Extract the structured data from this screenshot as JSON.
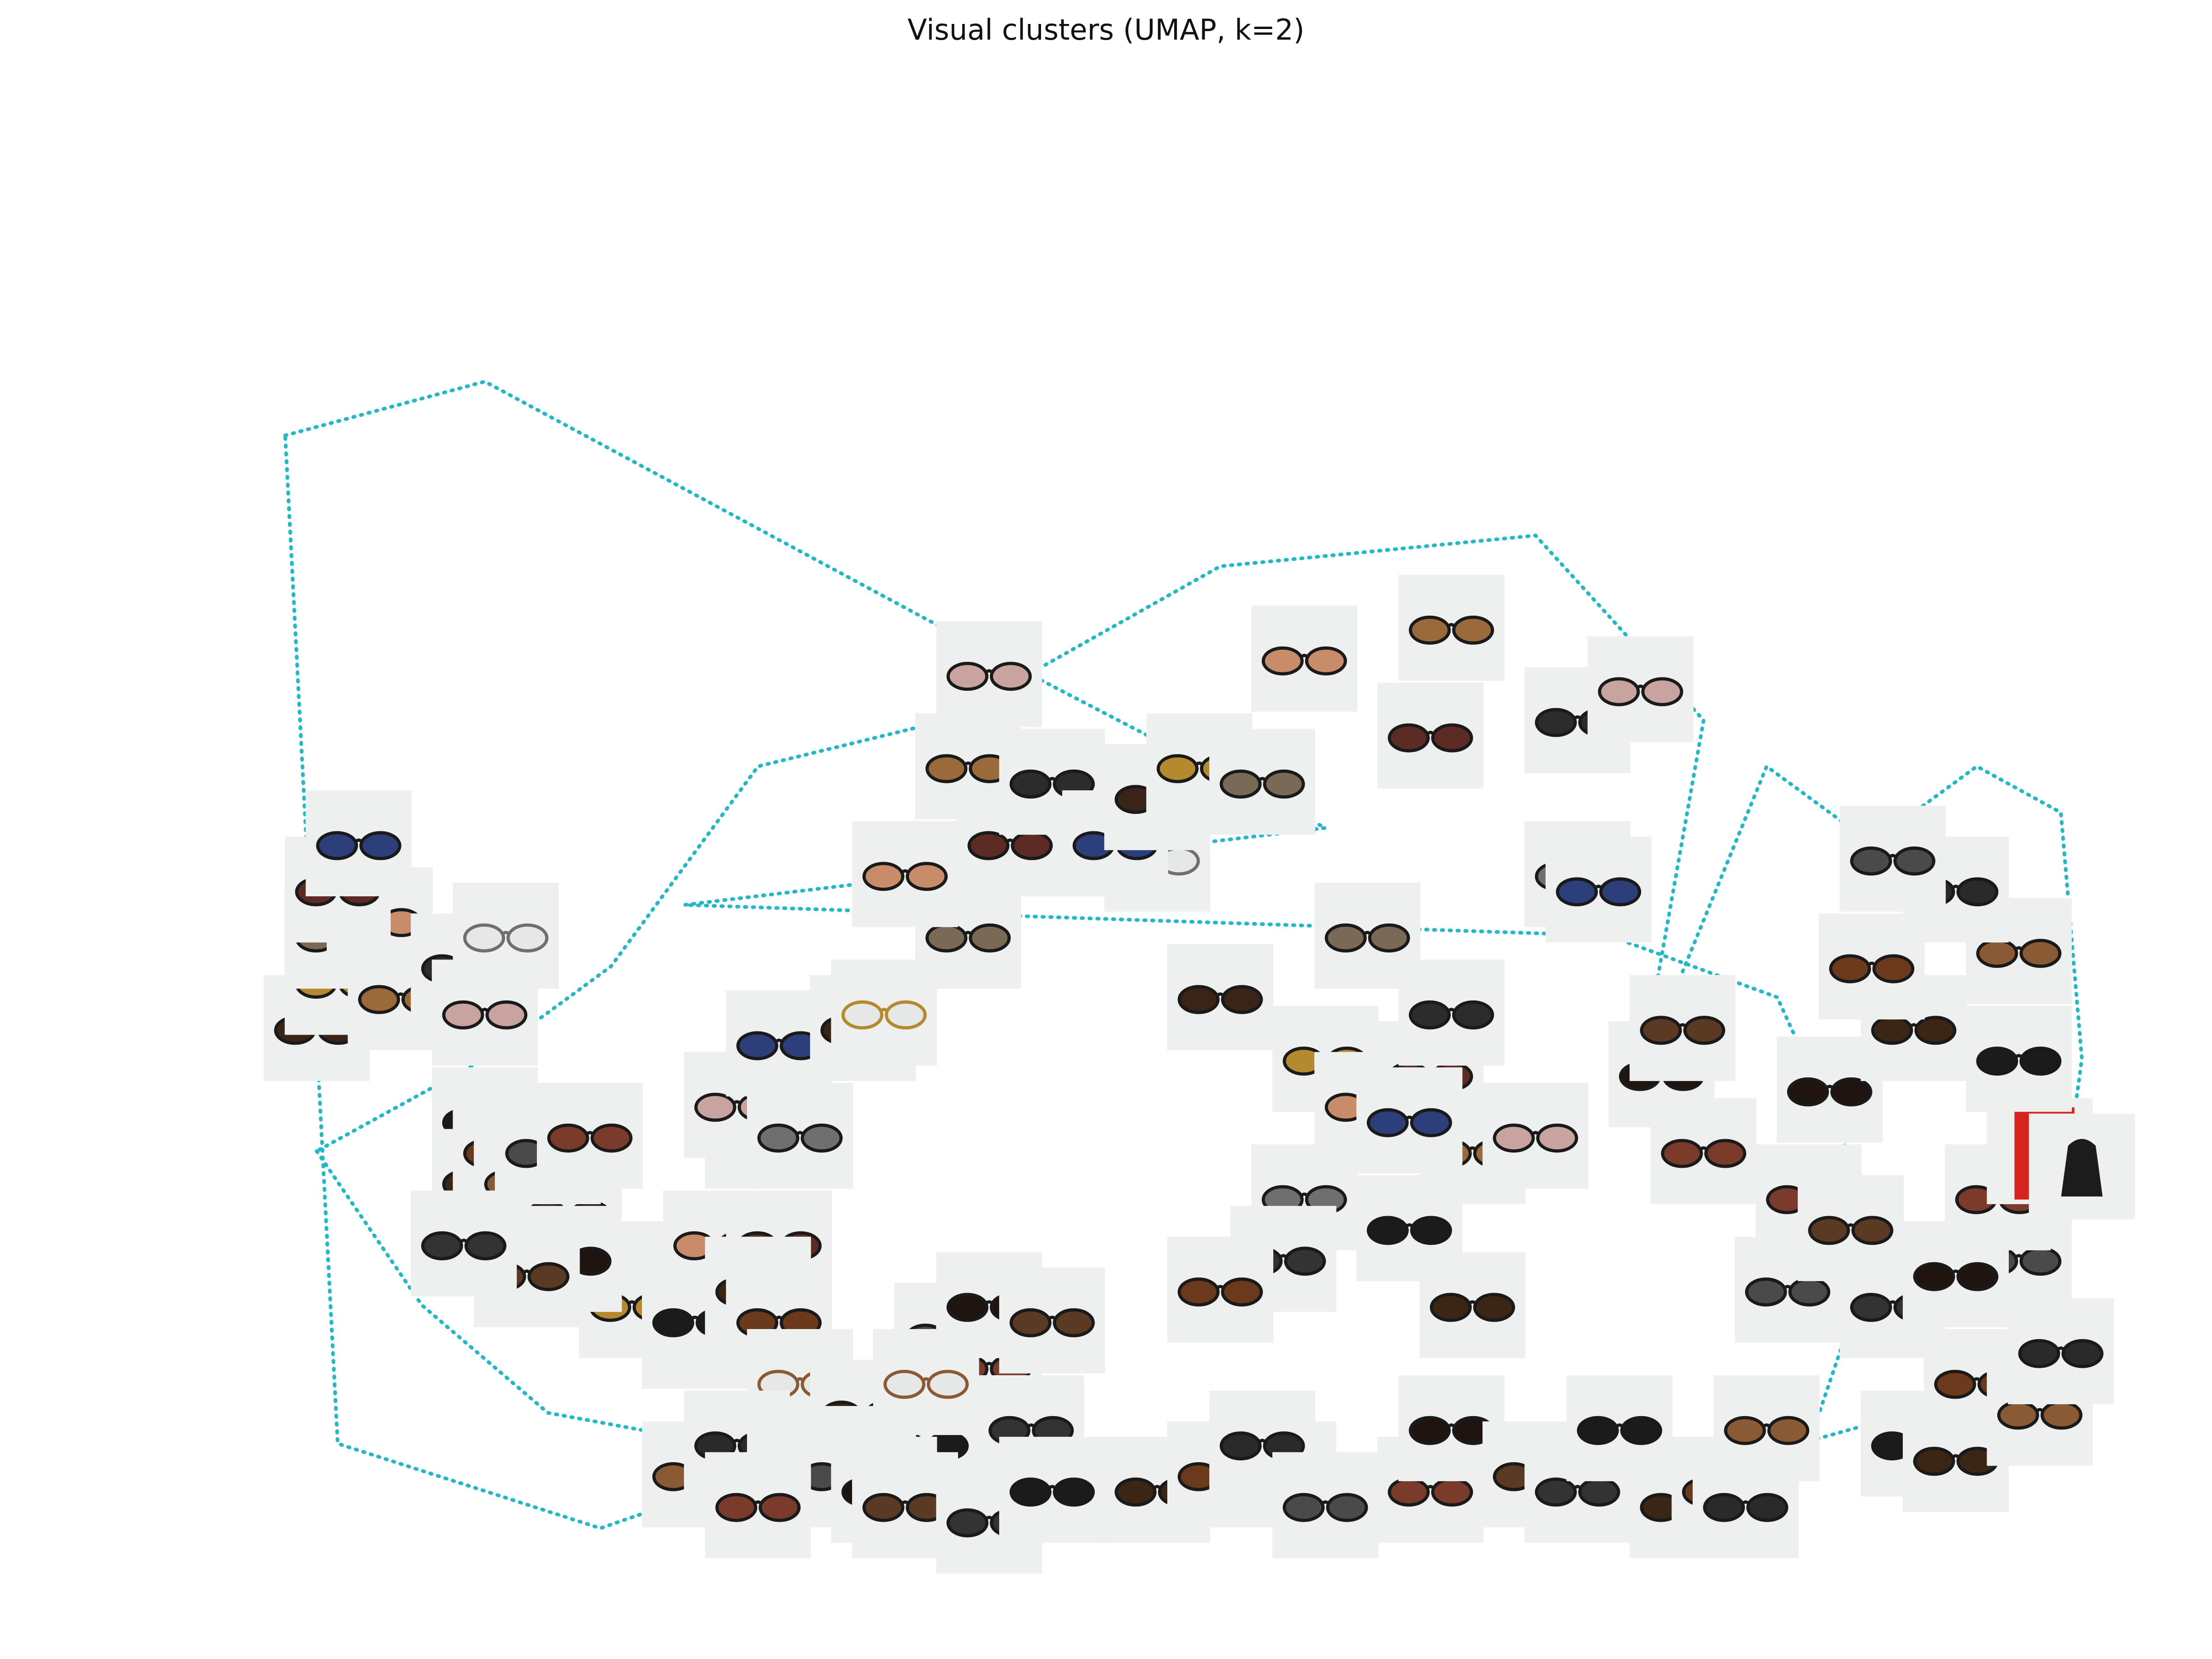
{
  "chart_data": {
    "type": "scatter",
    "title": "Visual clusters (UMAP, k=2)",
    "xlabel": "",
    "ylabel": "",
    "axes_visible": false,
    "grid": false,
    "point_style": "product-thumbnail",
    "hull_color": "#22b8c8",
    "hull_style": "dotted",
    "tile_background": "#eef0ef",
    "clusters": [
      {
        "id": 0,
        "hull": [
          [
            0.105,
            0.765
          ],
          [
            0.2,
            0.8
          ],
          [
            0.445,
            0.62
          ],
          [
            0.6,
            0.51
          ],
          [
            0.295,
            0.46
          ],
          [
            0.735,
            0.44
          ],
          [
            0.815,
            0.4
          ],
          [
            0.865,
            0.25
          ],
          [
            0.815,
            0.05
          ],
          [
            0.735,
            0.11
          ],
          [
            0.565,
            0.08
          ],
          [
            0.35,
            0.1
          ],
          [
            0.255,
            0.055
          ],
          [
            0.13,
            0.11
          ]
        ],
        "points": [
          {
            "x": 0.29,
            "y": 0.22,
            "item": "sunglasses"
          },
          {
            "x": 0.27,
            "y": 0.2,
            "item": "sunglasses"
          },
          {
            "x": 0.3,
            "y": 0.18,
            "item": "sunglasses"
          },
          {
            "x": 0.31,
            "y": 0.24,
            "item": "sunglasses"
          },
          {
            "x": 0.34,
            "y": 0.24,
            "item": "sunglasses"
          },
          {
            "x": 0.33,
            "y": 0.19,
            "item": "sunglasses"
          },
          {
            "x": 0.33,
            "y": 0.31,
            "item": "sunglasses"
          },
          {
            "x": 0.32,
            "y": 0.33,
            "item": "sunglasses"
          },
          {
            "x": 0.35,
            "y": 0.31,
            "item": "sunglasses"
          },
          {
            "x": 0.34,
            "y": 0.37,
            "item": "sunglasses"
          },
          {
            "x": 0.38,
            "y": 0.38,
            "item": "sunglasses"
          },
          {
            "x": 0.39,
            "y": 0.39,
            "item": "eyeglasses"
          },
          {
            "x": 0.43,
            "y": 0.44,
            "item": "sunglasses"
          },
          {
            "x": 0.4,
            "y": 0.48,
            "item": "sunglasses"
          },
          {
            "x": 0.45,
            "y": 0.5,
            "item": "sunglasses"
          },
          {
            "x": 0.43,
            "y": 0.55,
            "item": "sunglasses"
          },
          {
            "x": 0.47,
            "y": 0.54,
            "item": "sunglasses"
          },
          {
            "x": 0.44,
            "y": 0.61,
            "item": "sunglasses"
          },
          {
            "x": 0.52,
            "y": 0.49,
            "item": "eyeglasses"
          },
          {
            "x": 0.5,
            "y": 0.5,
            "item": "sunglasses"
          },
          {
            "x": 0.52,
            "y": 0.53,
            "item": "sunglasses"
          },
          {
            "x": 0.54,
            "y": 0.55,
            "item": "sunglasses"
          },
          {
            "x": 0.57,
            "y": 0.54,
            "item": "sunglasses"
          },
          {
            "x": 0.59,
            "y": 0.62,
            "item": "sunglasses"
          },
          {
            "x": 0.65,
            "y": 0.57,
            "item": "sunglasses"
          },
          {
            "x": 0.66,
            "y": 0.64,
            "item": "sunglasses"
          },
          {
            "x": 0.72,
            "y": 0.58,
            "item": "sunglasses"
          },
          {
            "x": 0.75,
            "y": 0.6,
            "item": "sunglasses"
          },
          {
            "x": 0.72,
            "y": 0.48,
            "item": "sunglasses"
          },
          {
            "x": 0.73,
            "y": 0.47,
            "item": "sunglasses"
          },
          {
            "x": 0.55,
            "y": 0.4,
            "item": "sunglasses"
          },
          {
            "x": 0.6,
            "y": 0.36,
            "item": "sunglasses"
          },
          {
            "x": 0.62,
            "y": 0.44,
            "item": "sunglasses"
          },
          {
            "x": 0.62,
            "y": 0.33,
            "item": "sunglasses"
          },
          {
            "x": 0.65,
            "y": 0.35,
            "item": "sunglasses"
          },
          {
            "x": 0.67,
            "y": 0.3,
            "item": "sunglasses"
          },
          {
            "x": 0.66,
            "y": 0.39,
            "item": "sunglasses"
          },
          {
            "x": 0.7,
            "y": 0.31,
            "item": "sunglasses"
          },
          {
            "x": 0.59,
            "y": 0.27,
            "item": "sunglasses"
          },
          {
            "x": 0.64,
            "y": 0.32,
            "item": "sunglasses"
          },
          {
            "x": 0.12,
            "y": 0.38,
            "item": "sunglasses"
          },
          {
            "x": 0.13,
            "y": 0.41,
            "item": "sunglasses"
          },
          {
            "x": 0.13,
            "y": 0.44,
            "item": "sunglasses"
          },
          {
            "x": 0.15,
            "y": 0.45,
            "item": "sunglasses"
          },
          {
            "x": 0.13,
            "y": 0.47,
            "item": "sunglasses"
          },
          {
            "x": 0.16,
            "y": 0.4,
            "item": "sunglasses"
          },
          {
            "x": 0.19,
            "y": 0.42,
            "item": "sunglasses"
          },
          {
            "x": 0.2,
            "y": 0.39,
            "item": "sunglasses"
          },
          {
            "x": 0.21,
            "y": 0.44,
            "item": "eyeglasses"
          },
          {
            "x": 0.14,
            "y": 0.5,
            "item": "sunglasses"
          }
        ]
      },
      {
        "id": 1,
        "hull": [
          [
            0.12,
            0.3
          ],
          [
            0.17,
            0.2
          ],
          [
            0.23,
            0.13
          ],
          [
            0.35,
            0.1
          ],
          [
            0.5,
            0.1
          ],
          [
            0.72,
            0.09
          ],
          [
            0.8,
            0.1
          ],
          [
            0.93,
            0.15
          ],
          [
            0.95,
            0.26
          ],
          [
            0.96,
            0.36
          ],
          [
            0.95,
            0.52
          ],
          [
            0.91,
            0.55
          ],
          [
            0.86,
            0.5
          ],
          [
            0.81,
            0.55
          ],
          [
            0.75,
            0.35
          ],
          [
            0.78,
            0.58
          ],
          [
            0.7,
            0.7
          ],
          [
            0.55,
            0.68
          ],
          [
            0.42,
            0.58
          ],
          [
            0.33,
            0.55
          ],
          [
            0.26,
            0.42
          ],
          [
            0.2,
            0.36
          ]
        ],
        "points": [
          {
            "x": 0.2,
            "y": 0.32,
            "item": "sunglasses"
          },
          {
            "x": 0.2,
            "y": 0.28,
            "item": "sunglasses"
          },
          {
            "x": 0.21,
            "y": 0.3,
            "item": "sunglasses"
          },
          {
            "x": 0.22,
            "y": 0.28,
            "item": "sunglasses"
          },
          {
            "x": 0.24,
            "y": 0.26,
            "item": "sunglasses"
          },
          {
            "x": 0.23,
            "y": 0.3,
            "item": "sunglasses"
          },
          {
            "x": 0.25,
            "y": 0.31,
            "item": "sunglasses"
          },
          {
            "x": 0.24,
            "y": 0.23,
            "item": "sunglasses"
          },
          {
            "x": 0.22,
            "y": 0.22,
            "item": "sunglasses"
          },
          {
            "x": 0.19,
            "y": 0.24,
            "item": "sunglasses"
          },
          {
            "x": 0.3,
            "y": 0.19,
            "item": "sunglasses"
          },
          {
            "x": 0.33,
            "y": 0.21,
            "item": "sunglasses"
          },
          {
            "x": 0.34,
            "y": 0.19,
            "item": "sunglasses"
          },
          {
            "x": 0.35,
            "y": 0.15,
            "item": "eyeglasses"
          },
          {
            "x": 0.41,
            "y": 0.15,
            "item": "eyeglasses"
          },
          {
            "x": 0.42,
            "y": 0.18,
            "item": "sunglasses"
          },
          {
            "x": 0.44,
            "y": 0.16,
            "item": "sunglasses"
          },
          {
            "x": 0.44,
            "y": 0.2,
            "item": "sunglasses"
          },
          {
            "x": 0.47,
            "y": 0.19,
            "item": "sunglasses"
          },
          {
            "x": 0.46,
            "y": 0.12,
            "item": "sunglasses"
          },
          {
            "x": 0.41,
            "y": 0.11,
            "item": "sunglasses"
          },
          {
            "x": 0.38,
            "y": 0.13,
            "item": "sunglasses"
          },
          {
            "x": 0.36,
            "y": 0.1,
            "item": "sunglasses"
          },
          {
            "x": 0.3,
            "y": 0.09,
            "item": "sunglasses"
          },
          {
            "x": 0.32,
            "y": 0.11,
            "item": "sunglasses"
          },
          {
            "x": 0.35,
            "y": 0.09,
            "item": "sunglasses"
          },
          {
            "x": 0.33,
            "y": 0.07,
            "item": "sunglasses"
          },
          {
            "x": 0.39,
            "y": 0.08,
            "item": "sunglasses"
          },
          {
            "x": 0.4,
            "y": 0.07,
            "item": "sunglasses"
          },
          {
            "x": 0.44,
            "y": 0.06,
            "item": "sunglasses"
          },
          {
            "x": 0.47,
            "y": 0.08,
            "item": "sunglasses"
          },
          {
            "x": 0.52,
            "y": 0.08,
            "item": "sunglasses"
          },
          {
            "x": 0.55,
            "y": 0.09,
            "item": "sunglasses"
          },
          {
            "x": 0.58,
            "y": 0.09,
            "item": "sunglasses"
          },
          {
            "x": 0.57,
            "y": 0.11,
            "item": "sunglasses"
          },
          {
            "x": 0.6,
            "y": 0.07,
            "item": "sunglasses"
          },
          {
            "x": 0.65,
            "y": 0.08,
            "item": "sunglasses"
          },
          {
            "x": 0.66,
            "y": 0.12,
            "item": "sunglasses"
          },
          {
            "x": 0.7,
            "y": 0.09,
            "item": "sunglasses"
          },
          {
            "x": 0.72,
            "y": 0.08,
            "item": "sunglasses"
          },
          {
            "x": 0.74,
            "y": 0.12,
            "item": "sunglasses"
          },
          {
            "x": 0.77,
            "y": 0.07,
            "item": "sunglasses"
          },
          {
            "x": 0.79,
            "y": 0.08,
            "item": "sunglasses"
          },
          {
            "x": 0.81,
            "y": 0.12,
            "item": "sunglasses"
          },
          {
            "x": 0.8,
            "y": 0.07,
            "item": "sunglasses"
          },
          {
            "x": 0.82,
            "y": 0.21,
            "item": "sunglasses"
          },
          {
            "x": 0.83,
            "y": 0.27,
            "item": "sunglasses"
          },
          {
            "x": 0.84,
            "y": 0.34,
            "item": "sunglasses"
          },
          {
            "x": 0.85,
            "y": 0.25,
            "item": "sunglasses"
          },
          {
            "x": 0.87,
            "y": 0.2,
            "item": "sunglasses"
          },
          {
            "x": 0.88,
            "y": 0.11,
            "item": "sunglasses"
          },
          {
            "x": 0.9,
            "y": 0.1,
            "item": "sunglasses"
          },
          {
            "x": 0.91,
            "y": 0.15,
            "item": "sunglasses"
          },
          {
            "x": 0.94,
            "y": 0.13,
            "item": "sunglasses"
          },
          {
            "x": 0.95,
            "y": 0.17,
            "item": "sunglasses"
          },
          {
            "x": 0.93,
            "y": 0.23,
            "item": "sunglasses"
          },
          {
            "x": 0.92,
            "y": 0.27,
            "item": "sunglasses"
          },
          {
            "x": 0.9,
            "y": 0.22,
            "item": "sunglasses"
          },
          {
            "x": 0.94,
            "y": 0.3,
            "item": "book"
          },
          {
            "x": 0.96,
            "y": 0.29,
            "item": "bag"
          },
          {
            "x": 0.93,
            "y": 0.36,
            "item": "sunglasses"
          },
          {
            "x": 0.88,
            "y": 0.38,
            "item": "sunglasses"
          },
          {
            "x": 0.86,
            "y": 0.42,
            "item": "sunglasses"
          },
          {
            "x": 0.93,
            "y": 0.43,
            "item": "sunglasses"
          },
          {
            "x": 0.9,
            "y": 0.47,
            "item": "sunglasses"
          },
          {
            "x": 0.87,
            "y": 0.49,
            "item": "sunglasses"
          },
          {
            "x": 0.78,
            "y": 0.3,
            "item": "sunglasses"
          },
          {
            "x": 0.76,
            "y": 0.35,
            "item": "sunglasses"
          },
          {
            "x": 0.77,
            "y": 0.38,
            "item": "sunglasses"
          },
          {
            "x": 0.58,
            "y": 0.23,
            "item": "sunglasses"
          },
          {
            "x": 0.64,
            "y": 0.25,
            "item": "sunglasses"
          },
          {
            "x": 0.67,
            "y": 0.2,
            "item": "sunglasses"
          },
          {
            "x": 0.55,
            "y": 0.21,
            "item": "sunglasses"
          },
          {
            "x": 0.41,
            "y": 0.15,
            "item": "eyeglasses"
          }
        ]
      }
    ]
  }
}
